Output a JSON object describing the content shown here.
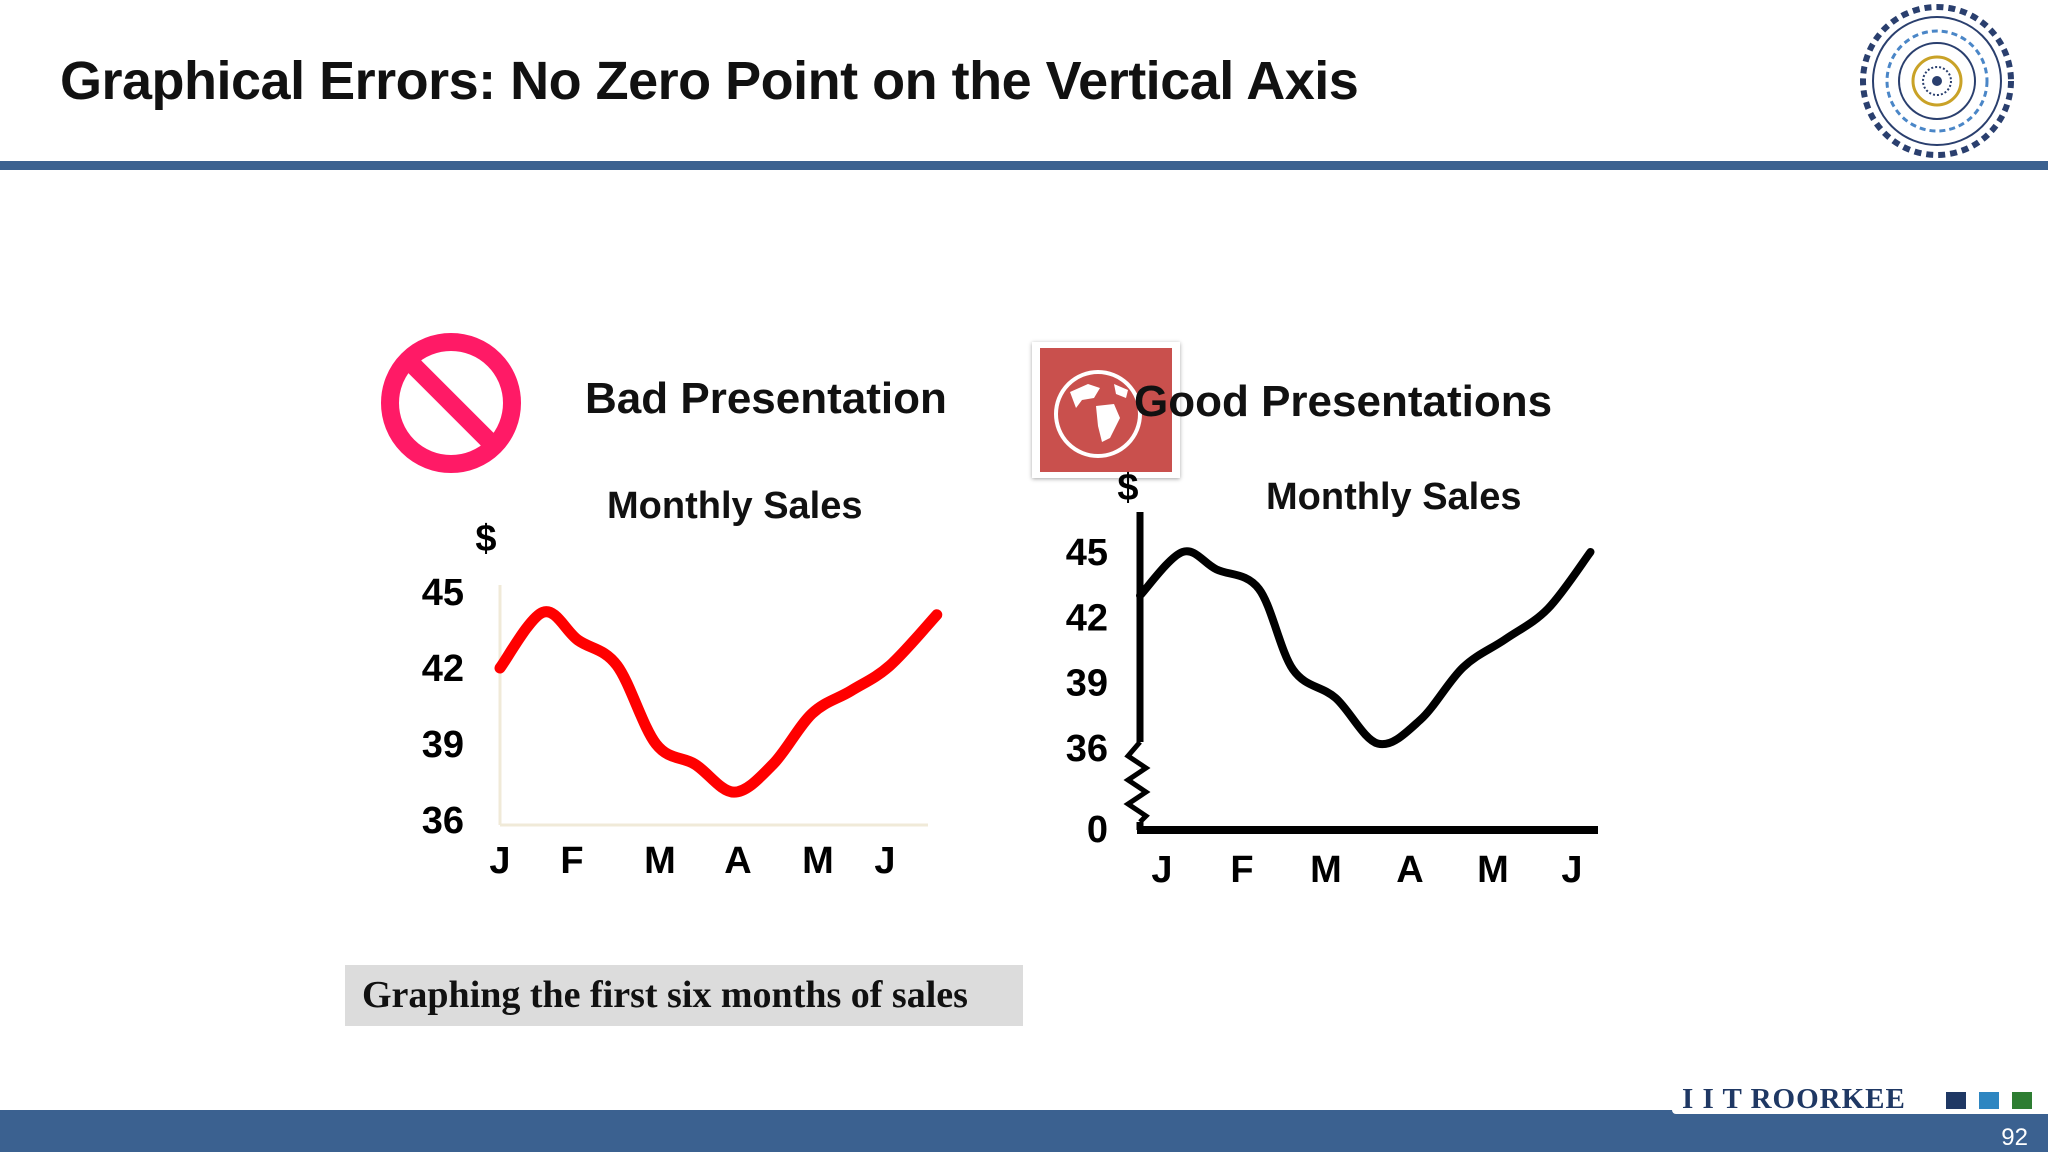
{
  "slide": {
    "title": "Graphical Errors: No Zero Point on the Vertical Axis",
    "caption": "Graphing the first six months of sales",
    "page_number": "92",
    "footer_brand": "I I T ROORKEE",
    "footer_colors": [
      "#1f3864",
      "#2e86c1",
      "#2e7d32"
    ],
    "accent_color": "#3b6190"
  },
  "bad_panel": {
    "heading": "Bad Presentation",
    "icon": "no-entry-icon",
    "icon_color": "#ff1a66"
  },
  "good_panel": {
    "heading": "Good Presentations",
    "icon": "globe-icon",
    "icon_color": "#c9504d"
  },
  "chart_data": [
    {
      "type": "line",
      "title": "Monthly Sales",
      "ylabel": "$",
      "categories": [
        "J",
        "F",
        "M",
        "A",
        "M",
        "J"
      ],
      "y_ticks": [
        "45",
        "42",
        "39",
        "36"
      ],
      "x": [
        0,
        0.55,
        1,
        1.5,
        2,
        2.5,
        3,
        3.5,
        4,
        4.5,
        5,
        5.6
      ],
      "values": [
        42,
        44.2,
        43.1,
        42.1,
        39,
        38.2,
        37.1,
        38.2,
        40.2,
        41.1,
        42.1,
        44.1
      ],
      "ylim": [
        36,
        45
      ],
      "line_color": "#ff0000",
      "grid": false
    },
    {
      "type": "line",
      "title": "Monthly Sales",
      "ylabel": "$",
      "categories": [
        "J",
        "F",
        "M",
        "A",
        "M",
        "J"
      ],
      "y_ticks": [
        "45",
        "42",
        "39",
        "36",
        "0"
      ],
      "x": [
        0,
        0.5,
        0.9,
        1.4,
        1.8,
        2.3,
        2.8,
        3.3,
        3.8,
        4.3,
        4.8,
        5.3
      ],
      "values": [
        43,
        45,
        44.2,
        43.3,
        39.6,
        38.3,
        36.2,
        37.3,
        39.7,
        41,
        42.4,
        45
      ],
      "ylim": [
        36,
        45
      ],
      "axis_break": true,
      "line_color": "#000000",
      "grid": false
    }
  ]
}
